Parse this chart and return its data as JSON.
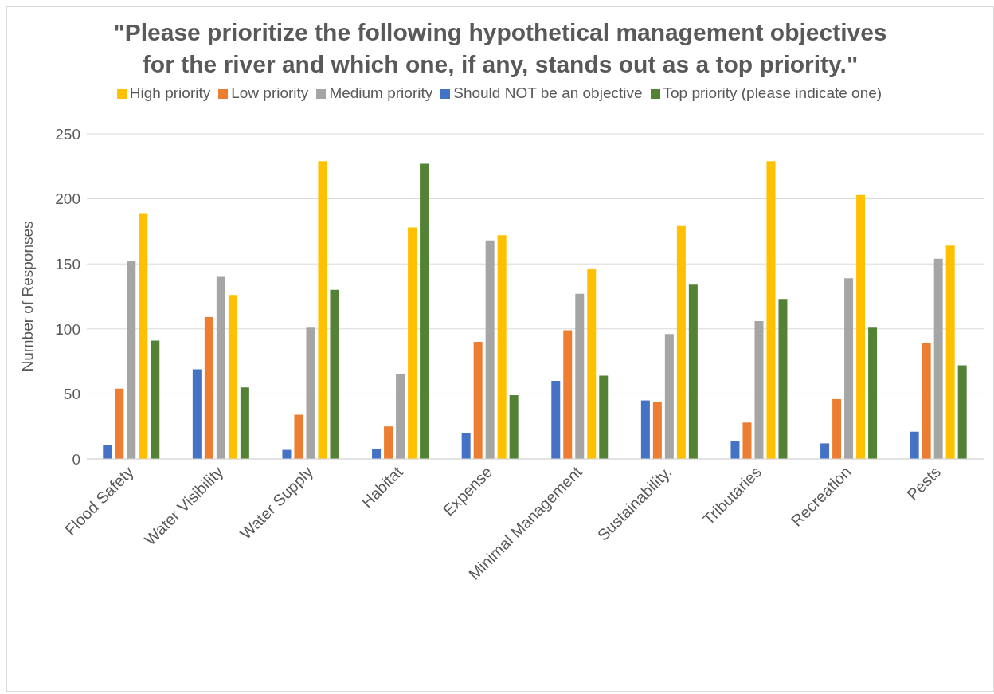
{
  "chart_data": {
    "type": "bar",
    "title": "\"Please prioritize the following hypothetical management objectives for the river and which one, if any, stands out as a top priority.\"",
    "ylabel": "Number of Responses",
    "categories": [
      "Flood Safety",
      "Water Visibility",
      "Water Supply",
      "Habitat",
      "Expense",
      "Minimal Management",
      "Sustainability.",
      "Tributaries",
      "Recreation",
      "Pests"
    ],
    "series": [
      {
        "name": "Should NOT be an objective",
        "color": "#4472c4",
        "values": [
          11,
          69,
          7,
          8,
          20,
          60,
          45,
          14,
          12,
          21
        ]
      },
      {
        "name": "Low priority",
        "color": "#ed7d31",
        "values": [
          54,
          109,
          34,
          25,
          90,
          99,
          44,
          28,
          46,
          89
        ]
      },
      {
        "name": "Medium priority",
        "color": "#a5a5a5",
        "values": [
          152,
          140,
          101,
          65,
          168,
          127,
          96,
          106,
          139,
          154
        ]
      },
      {
        "name": "High priority",
        "color": "#ffc000",
        "values": [
          189,
          126,
          229,
          178,
          172,
          146,
          179,
          229,
          203,
          164
        ]
      },
      {
        "name": "Top priority (please indicate one)",
        "color": "#548235",
        "values": [
          91,
          55,
          130,
          227,
          49,
          64,
          134,
          123,
          101,
          72
        ]
      }
    ],
    "ylim": [
      0,
      250
    ],
    "yticks": [
      0,
      50,
      100,
      150,
      200,
      250
    ],
    "grid": "y",
    "legend": "top"
  }
}
